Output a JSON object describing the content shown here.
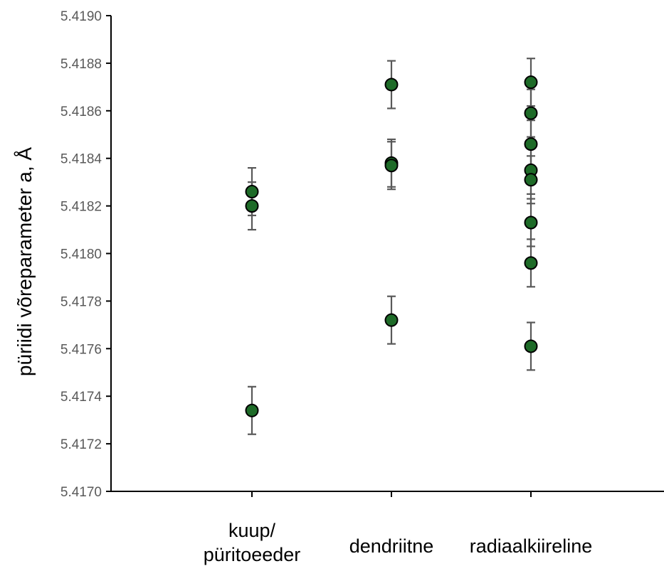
{
  "chart_data": {
    "type": "scatter",
    "title": "",
    "xlabel": "",
    "ylabel": "püriidi võreparameter a, Å",
    "ylim": [
      5.417,
      5.419
    ],
    "yticks": [
      "5.4170",
      "5.4172",
      "5.4174",
      "5.4176",
      "5.4178",
      "5.4180",
      "5.4182",
      "5.4184",
      "5.4186",
      "5.4188",
      "5.4190"
    ],
    "categories": [
      {
        "lines": [
          "kuup/",
          "püritoeeder"
        ]
      },
      {
        "lines": [
          "dendriitne"
        ]
      },
      {
        "lines": [
          "radiaalkiireline"
        ]
      }
    ],
    "error": 0.0001,
    "grid": false,
    "marker_color": "#1E6B28",
    "error_bar_color": "#595959",
    "points": [
      {
        "category": 0,
        "y": 5.41826
      },
      {
        "category": 0,
        "y": 5.4182
      },
      {
        "category": 0,
        "y": 5.41734
      },
      {
        "category": 1,
        "y": 5.41871
      },
      {
        "category": 1,
        "y": 5.41838
      },
      {
        "category": 1,
        "y": 5.41837
      },
      {
        "category": 1,
        "y": 5.41772
      },
      {
        "category": 2,
        "y": 5.41872
      },
      {
        "category": 2,
        "y": 5.41859
      },
      {
        "category": 2,
        "y": 5.41846
      },
      {
        "category": 2,
        "y": 5.41835
      },
      {
        "category": 2,
        "y": 5.41831
      },
      {
        "category": 2,
        "y": 5.41813
      },
      {
        "category": 2,
        "y": 5.41796
      },
      {
        "category": 2,
        "y": 5.41761
      }
    ]
  }
}
